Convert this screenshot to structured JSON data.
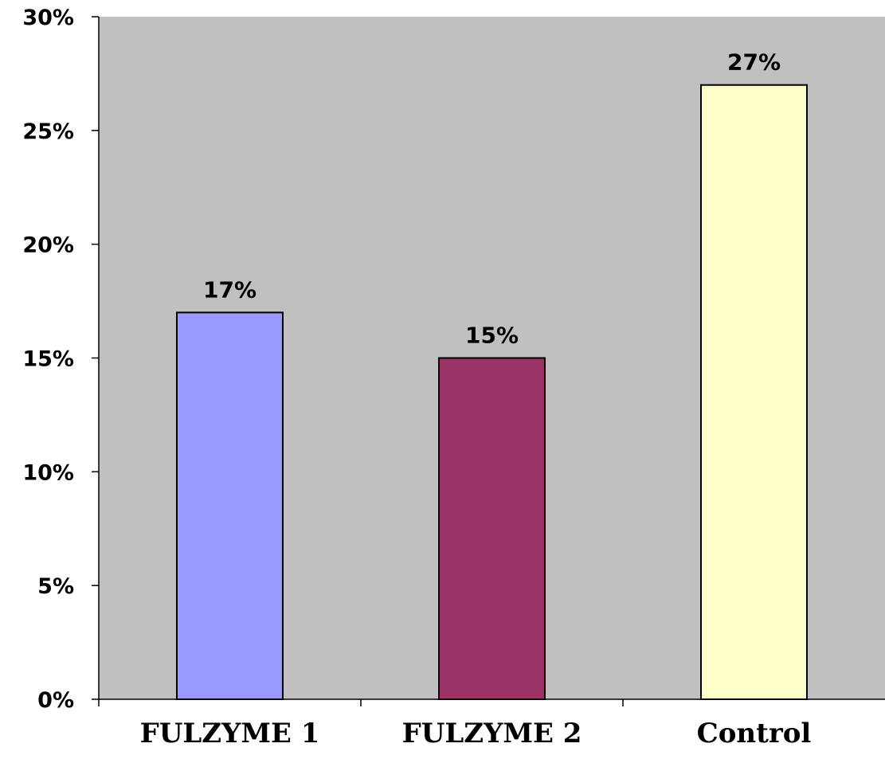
{
  "chart_data": {
    "type": "bar",
    "title": "",
    "xlabel": "",
    "ylabel": "",
    "categories": [
      "FULZYME 1",
      "FULZYME 2",
      "Control"
    ],
    "values": [
      17,
      15,
      27
    ],
    "data_labels": [
      "17%",
      "15%",
      "27%"
    ],
    "bar_colors": [
      "#9999ff",
      "#993366",
      "#ffffcc"
    ],
    "ylim": [
      0,
      30
    ],
    "yticks": [
      0,
      5,
      10,
      15,
      20,
      25,
      30
    ],
    "ytick_labels": [
      "0%",
      "5%",
      "10%",
      "15%",
      "20%",
      "25%",
      "30%"
    ],
    "plot_background": "#c0c0c0",
    "grid": false,
    "legend": "none"
  }
}
